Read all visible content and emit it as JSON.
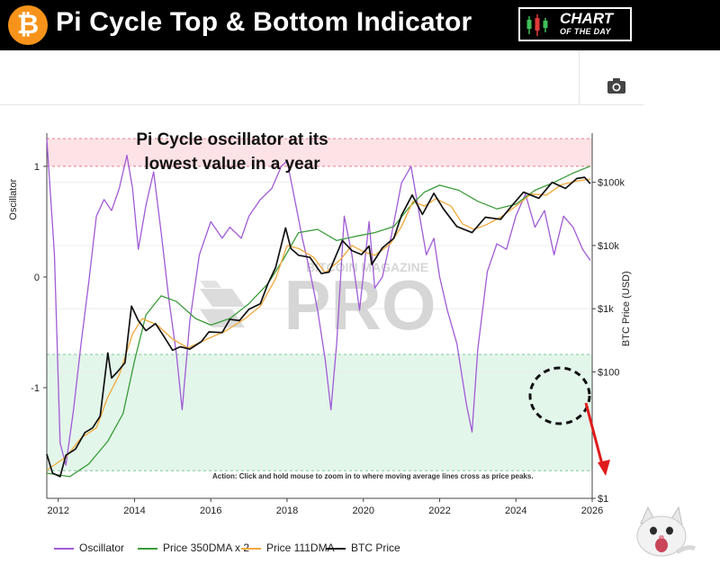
{
  "header": {
    "title": "Pi Cycle Top & Bottom Indicator",
    "logo_glyph": "₿",
    "badge_line1": "CHART",
    "badge_line2": "OF THE DAY"
  },
  "toolbar": {
    "camera_icon": "camera-icon"
  },
  "colors": {
    "oscillator": "#a15bd6",
    "dma350x2": "#3a9b3a",
    "dma111": "#f2a93b",
    "btc_price": "#111111",
    "top_zone": "#fde3e6",
    "bottom_zone": "#e3f6ea",
    "arrow": "#e01b1b"
  },
  "chart_data": {
    "type": "line",
    "annotation": "Pi Cycle oscillator at its lowest value in a year",
    "action_note": "Action: Click and hold mouse to zoom in to where moving average lines cross as price peaks.",
    "watermark_small": "BITCOIN MAGAZINE",
    "watermark_big": "PRO",
    "x_ticks": [
      "2012",
      "2014",
      "2016",
      "2018",
      "2020",
      "2022",
      "2024",
      "2026"
    ],
    "x_range": [
      2011.7,
      2026
    ],
    "y_left": {
      "label": "Oscillator",
      "ticks": [
        "1",
        "0",
        "-1"
      ],
      "range": [
        -2.0,
        1.3
      ],
      "top_zone": [
        1.0,
        1.25
      ],
      "bottom_zone": [
        -1.75,
        -0.7
      ]
    },
    "y_right": {
      "label": "BTC Price (USD)",
      "scale": "log",
      "ticks": [
        "$100k",
        "$10k",
        "$1k",
        "$100",
        "$1"
      ],
      "tick_values": [
        100000,
        10000,
        1000,
        100,
        1
      ]
    },
    "legend": [
      "Oscillator",
      "Price 350DMA x 2",
      "Price 111DMA",
      "BTC Price"
    ],
    "series": [
      {
        "name": "Oscillator",
        "axis": "left",
        "points": [
          [
            2011.7,
            1.25
          ],
          [
            2011.9,
            0.2
          ],
          [
            2012.05,
            -1.5
          ],
          [
            2012.2,
            -1.7
          ],
          [
            2012.4,
            -1.2
          ],
          [
            2012.6,
            -0.6
          ],
          [
            2012.8,
            -0.05
          ],
          [
            2013.0,
            0.55
          ],
          [
            2013.2,
            0.7
          ],
          [
            2013.4,
            0.6
          ],
          [
            2013.6,
            0.8
          ],
          [
            2013.8,
            1.1
          ],
          [
            2013.95,
            0.8
          ],
          [
            2014.1,
            0.25
          ],
          [
            2014.3,
            0.65
          ],
          [
            2014.5,
            0.95
          ],
          [
            2014.7,
            0.4
          ],
          [
            2014.9,
            -0.2
          ],
          [
            2015.1,
            -0.7
          ],
          [
            2015.25,
            -1.2
          ],
          [
            2015.45,
            -0.4
          ],
          [
            2015.7,
            0.2
          ],
          [
            2016.0,
            0.5
          ],
          [
            2016.3,
            0.35
          ],
          [
            2016.5,
            0.45
          ],
          [
            2016.8,
            0.35
          ],
          [
            2017.0,
            0.55
          ],
          [
            2017.3,
            0.7
          ],
          [
            2017.6,
            0.8
          ],
          [
            2017.85,
            1.0
          ],
          [
            2018.0,
            1.05
          ],
          [
            2018.2,
            0.7
          ],
          [
            2018.4,
            0.35
          ],
          [
            2018.6,
            0.05
          ],
          [
            2018.8,
            -0.3
          ],
          [
            2019.0,
            -0.75
          ],
          [
            2019.15,
            -1.2
          ],
          [
            2019.3,
            -0.6
          ],
          [
            2019.5,
            0.55
          ],
          [
            2019.7,
            0.2
          ],
          [
            2019.9,
            -0.3
          ],
          [
            2020.15,
            0.5
          ],
          [
            2020.3,
            -0.1
          ],
          [
            2020.5,
            0.0
          ],
          [
            2020.75,
            0.4
          ],
          [
            2021.0,
            0.85
          ],
          [
            2021.25,
            1.0
          ],
          [
            2021.45,
            0.6
          ],
          [
            2021.65,
            0.2
          ],
          [
            2021.85,
            0.35
          ],
          [
            2022.0,
            0.0
          ],
          [
            2022.2,
            -0.3
          ],
          [
            2022.45,
            -0.6
          ],
          [
            2022.7,
            -1.15
          ],
          [
            2022.85,
            -1.4
          ],
          [
            2023.0,
            -0.65
          ],
          [
            2023.25,
            0.05
          ],
          [
            2023.5,
            0.3
          ],
          [
            2023.75,
            0.25
          ],
          [
            2024.0,
            0.55
          ],
          [
            2024.25,
            0.75
          ],
          [
            2024.5,
            0.45
          ],
          [
            2024.75,
            0.6
          ],
          [
            2025.0,
            0.2
          ],
          [
            2025.25,
            0.55
          ],
          [
            2025.5,
            0.45
          ],
          [
            2025.75,
            0.25
          ],
          [
            2025.95,
            0.15
          ]
        ]
      },
      {
        "name": "Price 350DMA x 2",
        "axis": "right",
        "points": [
          [
            2011.7,
            2.5
          ],
          [
            2012.3,
            2.2
          ],
          [
            2012.8,
            3.5
          ],
          [
            2013.3,
            8
          ],
          [
            2013.7,
            22
          ],
          [
            2014.0,
            150
          ],
          [
            2014.3,
            800
          ],
          [
            2014.7,
            1600
          ],
          [
            2015.1,
            1300
          ],
          [
            2015.6,
            700
          ],
          [
            2016.0,
            550
          ],
          [
            2016.5,
            700
          ],
          [
            2017.0,
            1200
          ],
          [
            2017.5,
            2500
          ],
          [
            2017.9,
            6000
          ],
          [
            2018.3,
            16000
          ],
          [
            2018.8,
            18000
          ],
          [
            2019.3,
            12000
          ],
          [
            2019.8,
            14000
          ],
          [
            2020.3,
            16000
          ],
          [
            2020.8,
            20000
          ],
          [
            2021.2,
            40000
          ],
          [
            2021.6,
            70000
          ],
          [
            2022.0,
            90000
          ],
          [
            2022.5,
            75000
          ],
          [
            2023.0,
            50000
          ],
          [
            2023.5,
            38000
          ],
          [
            2024.0,
            45000
          ],
          [
            2024.5,
            75000
          ],
          [
            2025.0,
            100000
          ],
          [
            2025.5,
            140000
          ],
          [
            2025.95,
            180000
          ]
        ]
      },
      {
        "name": "Price 111DMA",
        "axis": "right",
        "points": [
          [
            2011.7,
            2.8
          ],
          [
            2012.2,
            4.5
          ],
          [
            2012.6,
            9
          ],
          [
            2013.0,
            13
          ],
          [
            2013.3,
            40
          ],
          [
            2013.6,
            90
          ],
          [
            2013.95,
            400
          ],
          [
            2014.2,
            700
          ],
          [
            2014.6,
            550
          ],
          [
            2015.0,
            330
          ],
          [
            2015.4,
            240
          ],
          [
            2015.9,
            330
          ],
          [
            2016.4,
            450
          ],
          [
            2016.9,
            700
          ],
          [
            2017.3,
            1100
          ],
          [
            2017.7,
            3000
          ],
          [
            2018.0,
            10000
          ],
          [
            2018.3,
            9000
          ],
          [
            2018.7,
            6500
          ],
          [
            2019.0,
            3700
          ],
          [
            2019.4,
            6000
          ],
          [
            2019.7,
            10000
          ],
          [
            2020.0,
            8000
          ],
          [
            2020.3,
            7000
          ],
          [
            2020.7,
            10500
          ],
          [
            2021.0,
            20000
          ],
          [
            2021.3,
            50000
          ],
          [
            2021.6,
            42000
          ],
          [
            2021.9,
            55000
          ],
          [
            2022.3,
            42000
          ],
          [
            2022.6,
            22000
          ],
          [
            2022.9,
            18000
          ],
          [
            2023.2,
            21000
          ],
          [
            2023.6,
            28000
          ],
          [
            2024.0,
            42000
          ],
          [
            2024.4,
            65000
          ],
          [
            2024.8,
            63000
          ],
          [
            2025.2,
            92000
          ],
          [
            2025.6,
            105000
          ],
          [
            2025.95,
            112000
          ]
        ]
      },
      {
        "name": "BTC Price",
        "axis": "right",
        "points": [
          [
            2011.7,
            5
          ],
          [
            2011.85,
            2.5
          ],
          [
            2012.05,
            2.2
          ],
          [
            2012.2,
            4.8
          ],
          [
            2012.45,
            6
          ],
          [
            2012.7,
            11
          ],
          [
            2012.9,
            13
          ],
          [
            2013.1,
            20
          ],
          [
            2013.3,
            200
          ],
          [
            2013.4,
            80
          ],
          [
            2013.55,
            100
          ],
          [
            2013.75,
            140
          ],
          [
            2013.92,
            1100
          ],
          [
            2014.1,
            650
          ],
          [
            2014.3,
            450
          ],
          [
            2014.55,
            580
          ],
          [
            2014.75,
            380
          ],
          [
            2015.0,
            220
          ],
          [
            2015.2,
            250
          ],
          [
            2015.45,
            230
          ],
          [
            2015.75,
            300
          ],
          [
            2015.95,
            430
          ],
          [
            2016.3,
            420
          ],
          [
            2016.5,
            680
          ],
          [
            2016.75,
            650
          ],
          [
            2017.0,
            980
          ],
          [
            2017.3,
            1200
          ],
          [
            2017.5,
            2500
          ],
          [
            2017.7,
            4500
          ],
          [
            2017.96,
            19000
          ],
          [
            2018.1,
            9000
          ],
          [
            2018.3,
            7000
          ],
          [
            2018.6,
            6500
          ],
          [
            2018.9,
            3600
          ],
          [
            2019.1,
            3800
          ],
          [
            2019.45,
            12000
          ],
          [
            2019.7,
            8300
          ],
          [
            2019.95,
            7200
          ],
          [
            2020.15,
            9800
          ],
          [
            2020.22,
            5000
          ],
          [
            2020.5,
            9200
          ],
          [
            2020.8,
            13000
          ],
          [
            2021.0,
            30000
          ],
          [
            2021.28,
            63000
          ],
          [
            2021.55,
            31000
          ],
          [
            2021.85,
            67000
          ],
          [
            2022.1,
            38000
          ],
          [
            2022.45,
            20000
          ],
          [
            2022.85,
            16000
          ],
          [
            2023.2,
            28000
          ],
          [
            2023.6,
            26000
          ],
          [
            2023.9,
            43000
          ],
          [
            2024.2,
            70000
          ],
          [
            2024.6,
            56000
          ],
          [
            2024.95,
            100000
          ],
          [
            2025.3,
            80000
          ],
          [
            2025.6,
            115000
          ],
          [
            2025.8,
            120000
          ],
          [
            2025.95,
            95000
          ]
        ]
      }
    ]
  }
}
